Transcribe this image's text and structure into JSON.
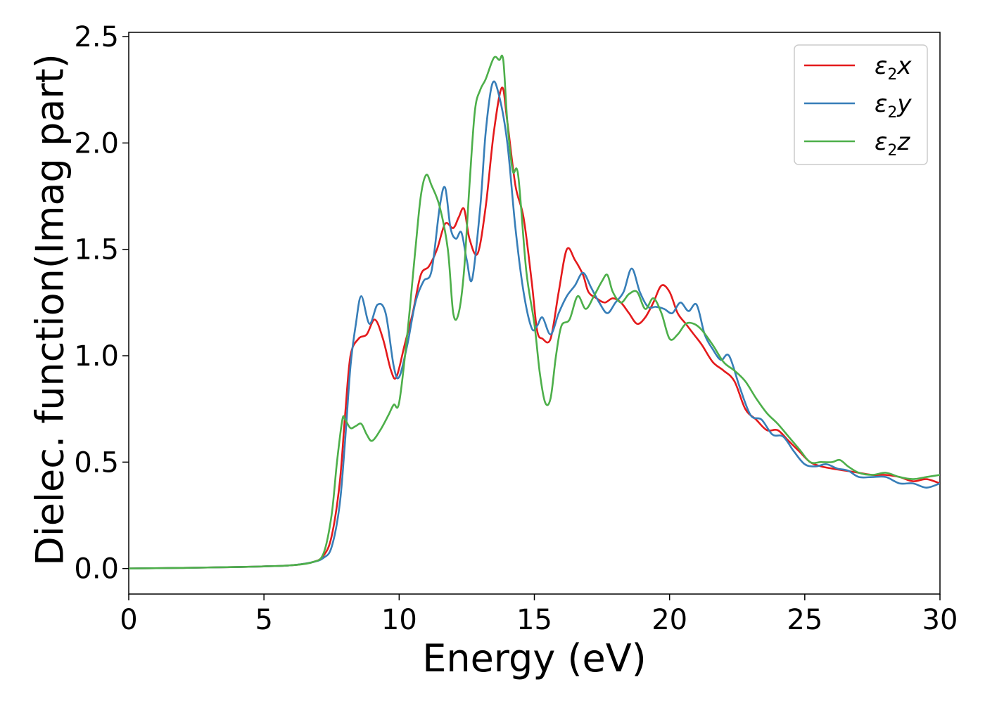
{
  "chart_data": {
    "type": "line",
    "title": "",
    "xlabel": "Energy (eV)",
    "ylabel": "Dielec. function(Imag part)",
    "xlim": [
      0,
      30
    ],
    "ylim": [
      -0.12,
      2.52
    ],
    "xticks": [
      0,
      5,
      10,
      15,
      20,
      25,
      30
    ],
    "xtick_labels": [
      "0",
      "5",
      "10",
      "15",
      "20",
      "25",
      "30"
    ],
    "yticks": [
      0.0,
      0.5,
      1.0,
      1.5,
      2.0,
      2.5
    ],
    "ytick_labels": [
      "0.0",
      "0.5",
      "1.0",
      "1.5",
      "2.0",
      "2.5"
    ],
    "grid": false,
    "legend_position": "top-right",
    "series": [
      {
        "name": "ε₂x",
        "base": "ε",
        "sub": "2",
        "axis": "x",
        "color": "#e41a1c",
        "x": [
          0,
          2,
          4,
          5,
          6,
          6.8,
          7.2,
          7.5,
          7.8,
          8.0,
          8.2,
          8.5,
          8.8,
          9.1,
          9.4,
          9.7,
          9.9,
          10.2,
          10.5,
          10.8,
          11.1,
          11.4,
          11.7,
          12.0,
          12.2,
          12.4,
          12.6,
          12.9,
          13.2,
          13.5,
          13.8,
          14.0,
          14.3,
          14.6,
          14.9,
          15.1,
          15.3,
          15.6,
          15.9,
          16.2,
          16.5,
          16.8,
          17.0,
          17.3,
          17.6,
          17.9,
          18.2,
          18.5,
          18.8,
          19.1,
          19.4,
          19.7,
          20.0,
          20.3,
          20.6,
          20.9,
          21.2,
          21.6,
          22.0,
          22.4,
          22.8,
          23.2,
          23.6,
          24.0,
          24.4,
          24.8,
          25.2,
          25.6,
          26.0,
          26.5,
          27.0,
          27.5,
          28.0,
          28.5,
          29.0,
          29.5,
          30.0
        ],
        "y": [
          0.0,
          0.003,
          0.007,
          0.01,
          0.015,
          0.03,
          0.06,
          0.15,
          0.4,
          0.72,
          1.0,
          1.08,
          1.1,
          1.17,
          1.08,
          0.93,
          0.9,
          1.05,
          1.2,
          1.38,
          1.42,
          1.5,
          1.62,
          1.6,
          1.65,
          1.69,
          1.55,
          1.48,
          1.7,
          2.05,
          2.26,
          2.1,
          1.8,
          1.65,
          1.35,
          1.12,
          1.08,
          1.08,
          1.3,
          1.5,
          1.45,
          1.38,
          1.3,
          1.27,
          1.25,
          1.27,
          1.25,
          1.2,
          1.15,
          1.18,
          1.25,
          1.33,
          1.3,
          1.2,
          1.15,
          1.1,
          1.05,
          0.97,
          0.93,
          0.88,
          0.75,
          0.7,
          0.65,
          0.65,
          0.6,
          0.55,
          0.5,
          0.48,
          0.47,
          0.46,
          0.45,
          0.44,
          0.44,
          0.43,
          0.41,
          0.42,
          0.4
        ]
      },
      {
        "name": "ε₂y",
        "base": "ε",
        "sub": "2",
        "axis": "y",
        "color": "#377eb8",
        "x": [
          0,
          2,
          4,
          5,
          6,
          6.8,
          7.2,
          7.5,
          7.8,
          8.0,
          8.2,
          8.4,
          8.6,
          8.9,
          9.2,
          9.5,
          9.8,
          10.0,
          10.3,
          10.6,
          10.9,
          11.2,
          11.5,
          11.7,
          11.9,
          12.1,
          12.3,
          12.5,
          12.7,
          13.0,
          13.2,
          13.45,
          13.7,
          14.0,
          14.3,
          14.6,
          14.9,
          15.1,
          15.3,
          15.6,
          15.9,
          16.2,
          16.5,
          16.8,
          17.1,
          17.4,
          17.7,
          18.0,
          18.3,
          18.6,
          18.9,
          19.2,
          19.5,
          19.8,
          20.1,
          20.4,
          20.7,
          21.0,
          21.3,
          21.6,
          21.9,
          22.2,
          22.6,
          23.0,
          23.4,
          23.8,
          24.2,
          24.6,
          25.0,
          25.4,
          25.8,
          26.2,
          26.6,
          27.0,
          27.5,
          28.0,
          28.5,
          29.0,
          29.5,
          30.0
        ],
        "y": [
          0.0,
          0.003,
          0.007,
          0.01,
          0.015,
          0.03,
          0.05,
          0.1,
          0.3,
          0.6,
          0.95,
          1.15,
          1.28,
          1.15,
          1.24,
          1.2,
          0.95,
          0.9,
          1.05,
          1.25,
          1.35,
          1.4,
          1.7,
          1.79,
          1.6,
          1.55,
          1.58,
          1.45,
          1.36,
          1.7,
          2.05,
          2.28,
          2.22,
          2.0,
          1.6,
          1.3,
          1.13,
          1.14,
          1.18,
          1.1,
          1.2,
          1.28,
          1.33,
          1.39,
          1.32,
          1.25,
          1.2,
          1.25,
          1.3,
          1.41,
          1.3,
          1.23,
          1.23,
          1.22,
          1.2,
          1.25,
          1.21,
          1.24,
          1.1,
          1.03,
          0.98,
          1.0,
          0.85,
          0.72,
          0.7,
          0.63,
          0.62,
          0.55,
          0.49,
          0.48,
          0.49,
          0.47,
          0.46,
          0.43,
          0.43,
          0.43,
          0.4,
          0.4,
          0.38,
          0.4
        ]
      },
      {
        "name": "ε₂z",
        "base": "ε",
        "sub": "2",
        "axis": "z",
        "color": "#4daf4a",
        "x": [
          0,
          2,
          4,
          5,
          6,
          6.8,
          7.2,
          7.5,
          7.7,
          7.9,
          8.0,
          8.2,
          8.4,
          8.6,
          8.8,
          9.0,
          9.3,
          9.6,
          9.8,
          10.0,
          10.3,
          10.6,
          10.8,
          11.0,
          11.2,
          11.5,
          11.8,
          12.0,
          12.2,
          12.4,
          12.6,
          12.8,
          13.0,
          13.2,
          13.5,
          13.7,
          13.85,
          14.0,
          14.2,
          14.4,
          14.7,
          15.0,
          15.2,
          15.4,
          15.6,
          15.8,
          16.0,
          16.3,
          16.6,
          16.9,
          17.2,
          17.5,
          17.7,
          17.9,
          18.2,
          18.5,
          18.8,
          19.1,
          19.4,
          19.7,
          20.0,
          20.3,
          20.6,
          20.9,
          21.2,
          21.6,
          22.0,
          22.4,
          22.8,
          23.2,
          23.6,
          24.0,
          24.4,
          24.8,
          25.2,
          25.6,
          26.0,
          26.3,
          26.6,
          27.0,
          27.5,
          28.0,
          28.5,
          29.0,
          29.5,
          30.0
        ],
        "y": [
          0.0,
          0.003,
          0.007,
          0.01,
          0.015,
          0.03,
          0.07,
          0.25,
          0.5,
          0.7,
          0.7,
          0.66,
          0.67,
          0.68,
          0.63,
          0.6,
          0.65,
          0.72,
          0.77,
          0.78,
          1.1,
          1.5,
          1.75,
          1.85,
          1.8,
          1.7,
          1.5,
          1.2,
          1.2,
          1.4,
          1.8,
          2.15,
          2.25,
          2.3,
          2.4,
          2.39,
          2.39,
          2.1,
          1.87,
          1.85,
          1.4,
          1.15,
          0.92,
          0.78,
          0.8,
          1.0,
          1.14,
          1.17,
          1.28,
          1.22,
          1.28,
          1.35,
          1.38,
          1.3,
          1.25,
          1.29,
          1.3,
          1.22,
          1.27,
          1.2,
          1.08,
          1.1,
          1.15,
          1.15,
          1.12,
          1.05,
          0.97,
          0.93,
          0.88,
          0.8,
          0.73,
          0.68,
          0.62,
          0.56,
          0.5,
          0.5,
          0.5,
          0.51,
          0.48,
          0.45,
          0.44,
          0.45,
          0.43,
          0.42,
          0.43,
          0.44
        ]
      }
    ]
  }
}
